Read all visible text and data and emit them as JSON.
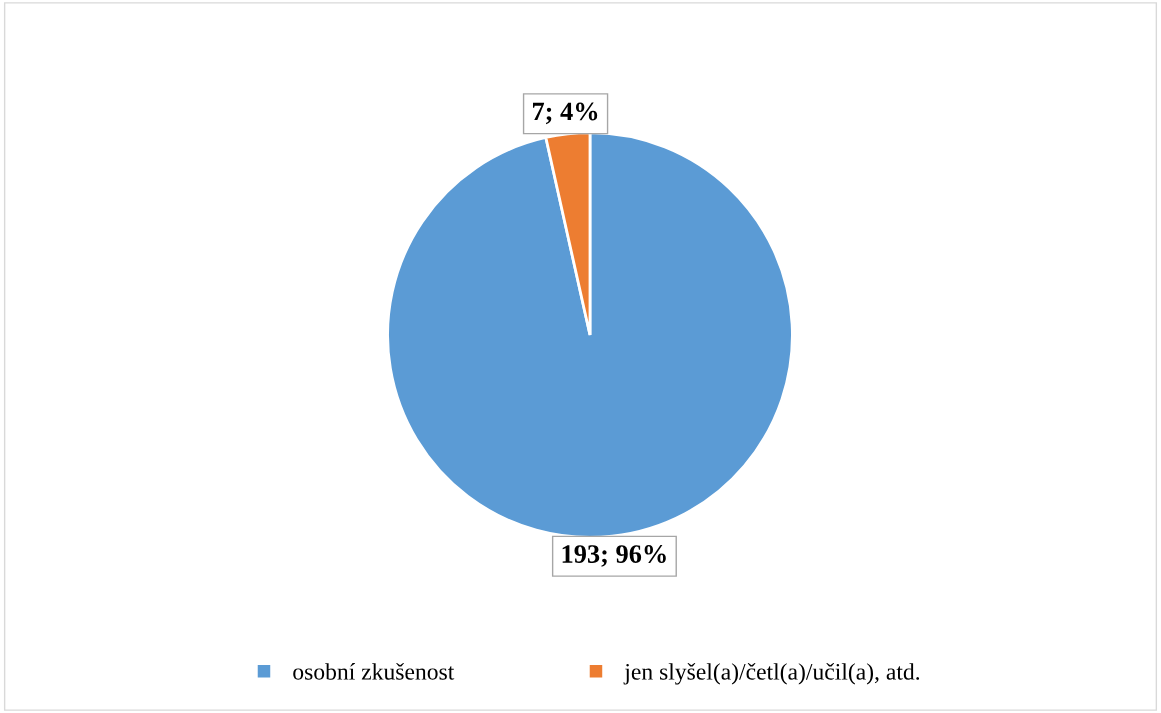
{
  "chart_data": {
    "type": "pie",
    "categories": [
      "osobní zkušenost",
      "jen slyšel(a)/četl(a)/učil(a), atd."
    ],
    "values": [
      193,
      7
    ],
    "colors": [
      "#5b9bd5",
      "#ed7d31"
    ],
    "value_labels": [
      "193; 96%",
      "7; 4%"
    ],
    "legend": "bottom"
  }
}
